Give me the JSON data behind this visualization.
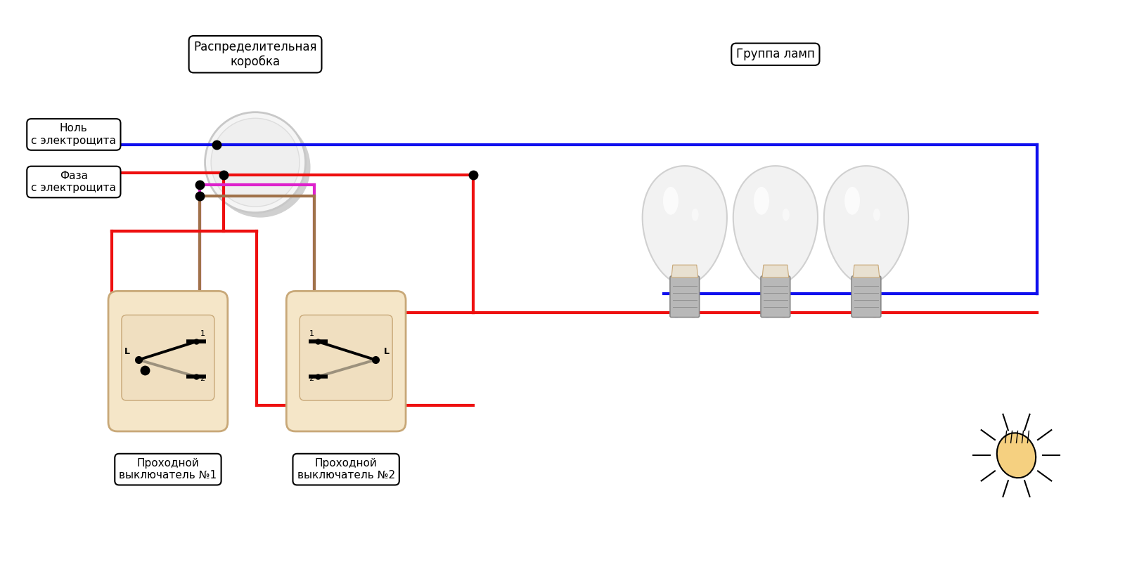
{
  "bg_color": "#ffffff",
  "wire_blue": "#1010ee",
  "wire_red": "#ee1010",
  "wire_magenta": "#dd22cc",
  "wire_brown": "#a0724a",
  "junction_color": "#000000",
  "switch_body_color": "#f5e6c8",
  "switch_body_edge": "#c8a878",
  "dist_box_label": "Распределительная\nкоробка",
  "null_label": "Ноль\nс электрощита",
  "phase_label": "Фаза\nс электрощита",
  "lamp_group_label": "Группа ламп",
  "sw1_label": "Проходной\nвыключатель №1",
  "sw2_label": "Проходной\nвыключатель №2",
  "lw": 3.0,
  "lw_thin": 1.5
}
